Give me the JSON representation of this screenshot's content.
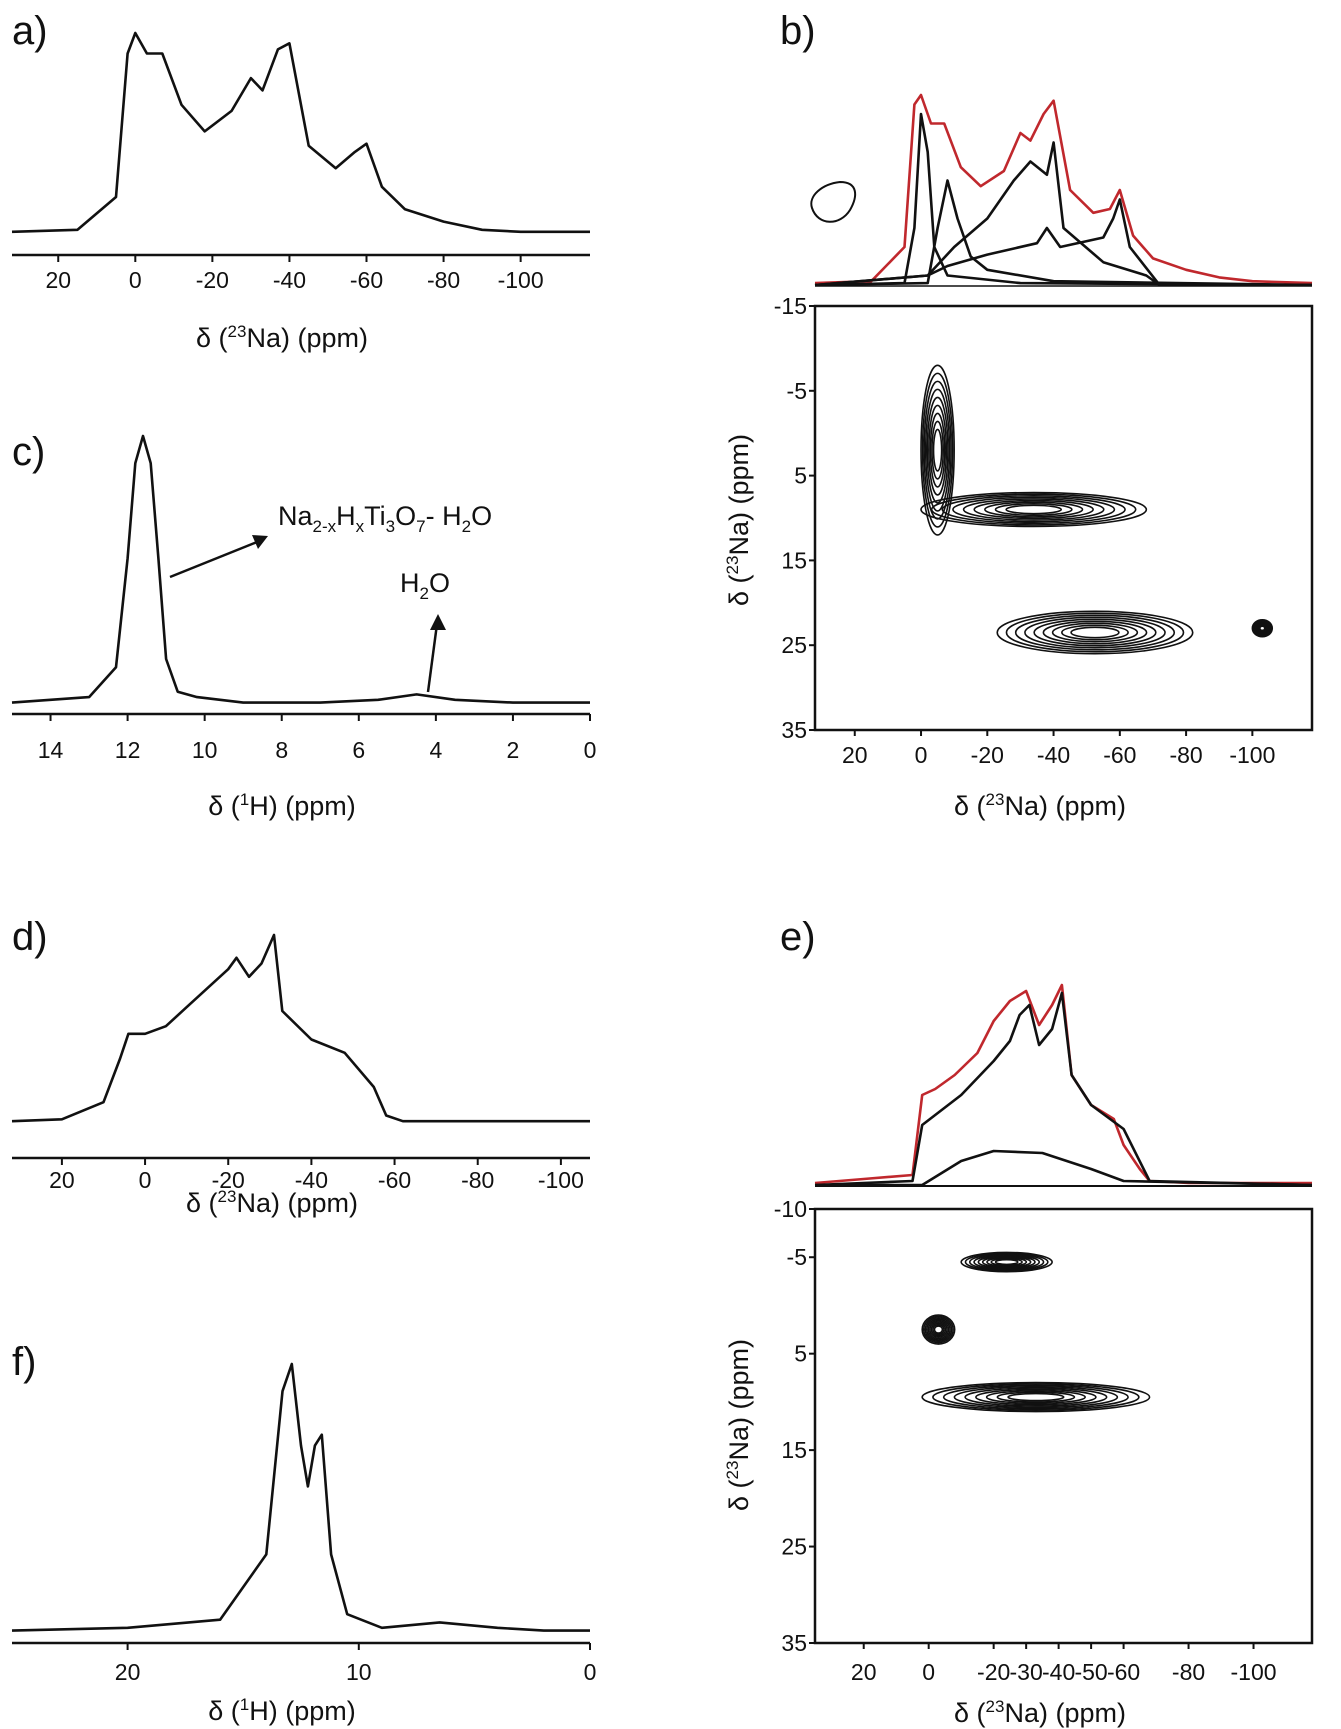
{
  "figure": {
    "panels": [
      {
        "id": "a",
        "label": "a)",
        "xticks": [
          "20",
          "0",
          "-20",
          "-40",
          "-60",
          "-80",
          "-100"
        ],
        "xlabel": {
          "pre": "δ (",
          "sup": "23",
          "post": "Na)  (ppm)"
        }
      },
      {
        "id": "b",
        "label": "b)"
      },
      {
        "id": "c",
        "label": "c)",
        "xticks": [
          "14",
          "12",
          "10",
          "8",
          "6",
          "4",
          "2",
          "0"
        ],
        "xlabel": {
          "pre": "δ (",
          "sup": "1",
          "post": "H)  (ppm)"
        }
      },
      {
        "id": "b2d",
        "xticks": [
          "20",
          "0",
          "-20",
          "-40",
          "-60",
          "-80",
          "-100"
        ],
        "yticks": [
          "-15",
          "-5",
          "5",
          "15",
          "25",
          "35"
        ],
        "xlabel": {
          "pre": "δ (",
          "sup": "23",
          "post": "Na)  (ppm)"
        },
        "ylabel": {
          "pre": "δ (",
          "sup": "23",
          "post": "Na)  (ppm)"
        }
      },
      {
        "id": "d",
        "label": "d)",
        "xticks": [
          "20",
          "0",
          "-20",
          "-40",
          "-60",
          "-80",
          "-100"
        ],
        "xlabel": {
          "pre": "δ (",
          "sup": "23",
          "post": "Na)  (ppm)"
        }
      },
      {
        "id": "e",
        "label": "e)"
      },
      {
        "id": "e2d",
        "xticks": [
          "20",
          "0",
          "-20",
          "-30",
          "-40",
          "-50",
          "-60",
          "-80",
          "-100"
        ],
        "yticks": [
          "-10",
          "-5",
          "5",
          "15",
          "25",
          "35"
        ],
        "xlabel": {
          "pre": "δ (",
          "sup": "23",
          "post": "Na)  (ppm)"
        },
        "ylabel": {
          "pre": "δ (",
          "sup": "23",
          "post": "Na)  (ppm)"
        }
      },
      {
        "id": "f",
        "label": "f)",
        "xticks": [
          "20",
          "10",
          "0"
        ],
        "xlabel": {
          "pre": "δ (",
          "sup": "1",
          "post": "H)  (ppm)"
        }
      }
    ],
    "annotations": {
      "titanate": {
        "p1": "Na",
        "s1": "2-x",
        "p2": "H",
        "s2": "x",
        "p3": "Ti",
        "s3": "3",
        "p4": "O",
        "s4": "7",
        "p5": "- H",
        "s5": "2",
        "p6": "O"
      },
      "water": {
        "p1": "H",
        "s1": "2",
        "p2": "O"
      }
    },
    "colors": {
      "trace": "#111111",
      "fit_sum": "#c0282d",
      "axis": "#111111"
    }
  },
  "chart_data": [
    {
      "panel": "a",
      "type": "line",
      "xlabel": "δ (23Na) (ppm)",
      "xlim": [
        32,
        -118
      ],
      "x_reversed": true,
      "series": [
        {
          "x": [
            32,
            15,
            5,
            2,
            0,
            -3,
            -7,
            -12,
            -18,
            -25,
            -30,
            -33,
            -37,
            -40,
            -45,
            -52,
            -57,
            -60,
            -64,
            -70,
            -80,
            -90,
            -100,
            -118
          ],
          "y": [
            0.03,
            0.04,
            0.2,
            0.9,
            1.0,
            0.9,
            0.9,
            0.65,
            0.52,
            0.62,
            0.78,
            0.72,
            0.92,
            0.95,
            0.45,
            0.34,
            0.42,
            0.46,
            0.25,
            0.14,
            0.08,
            0.04,
            0.03,
            0.03
          ]
        }
      ]
    },
    {
      "panel": "b",
      "type": "line",
      "xlim": [
        32,
        -118
      ],
      "x_reversed": true,
      "series": [
        {
          "name": "",
          "x": [
            32,
            15,
            5,
            2,
            0,
            -3,
            -7,
            -12,
            -18,
            -25,
            -30,
            -33,
            -37,
            -40,
            -45,
            -52,
            -57,
            -60,
            -64,
            -70,
            -80,
            -90,
            -100,
            -118
          ],
          "y": [
            0.01,
            0.02,
            0.2,
            0.95,
            1.0,
            0.85,
            0.85,
            0.62,
            0.52,
            0.6,
            0.8,
            0.76,
            0.9,
            0.97,
            0.5,
            0.38,
            0.4,
            0.5,
            0.26,
            0.14,
            0.08,
            0.04,
            0.02,
            0.01
          ]
        },
        {
          "name": "",
          "x": [
            32,
            5,
            2,
            0,
            -2,
            -4,
            -8,
            -30,
            -118
          ],
          "y": [
            0,
            0.01,
            0.3,
            0.9,
            0.7,
            0.2,
            0.05,
            0.01,
            0
          ]
        },
        {
          "name": "",
          "x": [
            32,
            -2,
            -5,
            -8,
            -11,
            -15,
            -20,
            -40,
            -118
          ],
          "y": [
            0,
            0.01,
            0.3,
            0.55,
            0.35,
            0.15,
            0.08,
            0.02,
            0
          ]
        },
        {
          "name": "",
          "x": [
            32,
            -2,
            -10,
            -20,
            -28,
            -33,
            -38,
            -40,
            -43,
            -55,
            -68,
            -72,
            -118
          ],
          "y": [
            0,
            0.05,
            0.2,
            0.35,
            0.55,
            0.65,
            0.58,
            0.75,
            0.3,
            0.12,
            0.05,
            0,
            0
          ]
        },
        {
          "name": "",
          "x": [
            32,
            -2,
            -8,
            -20,
            -35,
            -38,
            -42,
            -55,
            -58,
            -60,
            -63,
            -72,
            -118
          ],
          "y": [
            0,
            0.05,
            0.1,
            0.16,
            0.22,
            0.3,
            0.2,
            0.25,
            0.35,
            0.45,
            0.2,
            0,
            0
          ]
        }
      ]
    },
    {
      "panel": "b2d",
      "type": "heatmap",
      "xlim": [
        32,
        -118
      ],
      "ylim": [
        -15,
        35
      ],
      "regions": [
        {
          "x": [
            -10,
            0
          ],
          "y": [
            -8,
            12
          ]
        },
        {
          "x": [
            0,
            -68
          ],
          "y": [
            7,
            11
          ]
        },
        {
          "x": [
            -23,
            -82
          ],
          "y": [
            21,
            26
          ]
        },
        {
          "x": [
            -100,
            -106
          ],
          "y": [
            22,
            24
          ]
        }
      ]
    },
    {
      "panel": "c",
      "type": "line",
      "xlabel": "δ (1H) (ppm)",
      "xlim": [
        15,
        0
      ],
      "x_reversed": true,
      "series": [
        {
          "x": [
            15,
            13,
            12.3,
            12,
            11.8,
            11.6,
            11.4,
            11.2,
            11,
            10.7,
            10.2,
            9,
            7,
            5.5,
            4.5,
            3.5,
            2,
            0
          ],
          "y": [
            0.02,
            0.04,
            0.15,
            0.55,
            0.9,
            1.0,
            0.9,
            0.55,
            0.18,
            0.06,
            0.04,
            0.02,
            0.02,
            0.03,
            0.05,
            0.03,
            0.02,
            0.02
          ]
        }
      ]
    },
    {
      "panel": "d",
      "type": "line",
      "xlabel": "δ (23Na) (ppm)",
      "xlim": [
        32,
        -107
      ],
      "x_reversed": true,
      "series": [
        {
          "x": [
            32,
            20,
            10,
            6,
            4,
            0,
            -5,
            -10,
            -15,
            -20,
            -22,
            -25,
            -28,
            -31,
            -33,
            -40,
            -48,
            -55,
            -58,
            -62,
            -80,
            -107
          ],
          "y": [
            0.02,
            0.03,
            0.12,
            0.35,
            0.48,
            0.48,
            0.52,
            0.62,
            0.72,
            0.82,
            0.88,
            0.78,
            0.85,
            1.0,
            0.6,
            0.45,
            0.38,
            0.2,
            0.05,
            0.02,
            0.02,
            0.02
          ]
        }
      ]
    },
    {
      "panel": "e",
      "type": "line",
      "xlim": [
        35,
        -118
      ],
      "x_reversed": true,
      "series": [
        {
          "name": "",
          "x": [
            35,
            20,
            5,
            2,
            -2,
            -8,
            -15,
            -20,
            -25,
            -30,
            -34,
            -38,
            -41,
            -44,
            -50,
            -57,
            -60,
            -65,
            -68,
            -80,
            -118
          ],
          "y": [
            0.01,
            0.03,
            0.05,
            0.45,
            0.48,
            0.55,
            0.66,
            0.82,
            0.92,
            0.97,
            0.8,
            0.9,
            1.0,
            0.55,
            0.4,
            0.33,
            0.2,
            0.08,
            0.02,
            0.01,
            0.01
          ]
        },
        {
          "name": "",
          "x": [
            35,
            5,
            2,
            -2,
            -10,
            -20,
            -25,
            -28,
            -31,
            -34,
            -38,
            -41,
            -44,
            -50,
            -60,
            -68,
            -118
          ],
          "y": [
            0,
            0.02,
            0.3,
            0.35,
            0.45,
            0.62,
            0.72,
            0.85,
            0.9,
            0.7,
            0.78,
            0.96,
            0.55,
            0.4,
            0.28,
            0.02,
            0
          ]
        },
        {
          "name": "",
          "x": [
            35,
            2,
            -10,
            -20,
            -35,
            -50,
            -60,
            -118
          ],
          "y": [
            0,
            0,
            0.12,
            0.17,
            0.16,
            0.08,
            0.02,
            0
          ]
        }
      ]
    },
    {
      "panel": "e2d",
      "type": "heatmap",
      "xlim": [
        35,
        -118
      ],
      "ylim": [
        -10,
        35
      ],
      "regions": [
        {
          "x": [
            -10,
            -38
          ],
          "y": [
            -5.5,
            -3.5
          ]
        },
        {
          "x": [
            2,
            -8
          ],
          "y": [
            1,
            4
          ]
        },
        {
          "x": [
            2,
            -68
          ],
          "y": [
            8,
            11
          ]
        }
      ]
    },
    {
      "panel": "f",
      "type": "line",
      "xlabel": "δ (1H) (ppm)",
      "xlim": [
        25,
        0
      ],
      "x_reversed": true,
      "series": [
        {
          "x": [
            25,
            20,
            16,
            14,
            13.3,
            12.9,
            12.5,
            12.2,
            11.9,
            11.6,
            11.2,
            10.5,
            9,
            6.5,
            4,
            2,
            0
          ],
          "y": [
            0.02,
            0.03,
            0.06,
            0.3,
            0.9,
            1.0,
            0.7,
            0.55,
            0.7,
            0.74,
            0.3,
            0.08,
            0.03,
            0.05,
            0.03,
            0.02,
            0.02
          ]
        }
      ]
    }
  ]
}
